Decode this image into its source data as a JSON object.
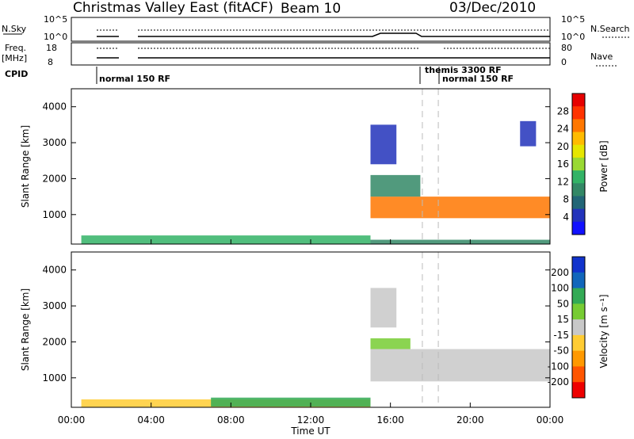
{
  "header": {
    "title": "Christmas Valley East (fitACF)",
    "beam": "Beam 10",
    "date": "03/Dec/2010"
  },
  "strip_labels": {
    "nsky": "N.Sky",
    "nsky_ticks": [
      "10^5",
      "10^0"
    ],
    "nsearch": "N.Search",
    "nsearch_ticks": [
      "10^5",
      "10^0"
    ],
    "freq_line1": "Freq.",
    "freq_line2": "[MHz]",
    "freq_ticks": [
      "18",
      "8"
    ],
    "nave": "Nave",
    "nave_ticks": [
      "80",
      "0"
    ],
    "cpid": "CPID",
    "cpid_modes": [
      "normal 150 RF",
      "themis 3300 RF",
      "normal 150 RF"
    ]
  },
  "x_axis": {
    "label": "Time UT",
    "ticks": [
      "00:00",
      "04:00",
      "08:00",
      "12:00",
      "16:00",
      "20:00",
      "00:00"
    ]
  },
  "power_colorbar": {
    "label": "Power [dB]",
    "ticks": [
      "28",
      "24",
      "20",
      "16",
      "12",
      "8",
      "4"
    ],
    "colors": [
      "#e60000",
      "#ff3300",
      "#ff7700",
      "#ffbb00",
      "#e6e600",
      "#99d933",
      "#33b366",
      "#338866",
      "#226677",
      "#2233bb",
      "#1111ff"
    ]
  },
  "velocity_colorbar": {
    "label": "Velocity [m s⁻¹]",
    "ticks": [
      "200",
      "100",
      "50",
      "15",
      "-15",
      "-50",
      "-100",
      "-200"
    ],
    "colors": [
      "#1133cc",
      "#1166bb",
      "#33aa55",
      "#77cc33",
      "#c8c8c8",
      "#ffcc33",
      "#ff9900",
      "#ff5500",
      "#ee0000"
    ]
  },
  "chart_data": [
    {
      "type": "heatmap",
      "panel": "power",
      "xlabel": "Time UT",
      "ylabel": "Slant Range [km]",
      "xlim": [
        0,
        24
      ],
      "ylim": [
        180,
        4500
      ],
      "yticks": [
        "4000",
        "3000",
        "2000",
        "1000"
      ],
      "colorbar": "Power [dB]",
      "features": [
        {
          "t0": 0.5,
          "t1": 15.0,
          "r0": 180,
          "r1": 420,
          "value": 12
        },
        {
          "t0": 15.0,
          "t1": 24.0,
          "r0": 180,
          "r1": 300,
          "value": 8
        },
        {
          "t0": 15.0,
          "t1": 24.0,
          "r0": 900,
          "r1": 1500,
          "value": 24
        },
        {
          "t0": 15.0,
          "t1": 17.5,
          "r0": 1500,
          "r1": 2100,
          "value": 8
        },
        {
          "t0": 15.0,
          "t1": 16.3,
          "r0": 2400,
          "r1": 3500,
          "value": 4
        },
        {
          "t0": 22.5,
          "t1": 23.3,
          "r0": 2900,
          "r1": 3600,
          "value": 4
        }
      ]
    },
    {
      "type": "heatmap",
      "panel": "velocity",
      "xlabel": "Time UT",
      "ylabel": "Slant Range [km]",
      "xlim": [
        0,
        24
      ],
      "ylim": [
        180,
        4500
      ],
      "yticks": [
        "4000",
        "3000",
        "2000",
        "1000"
      ],
      "colorbar": "Velocity [m s⁻¹]",
      "features": [
        {
          "t0": 0.5,
          "t1": 15.0,
          "r0": 180,
          "r1": 400,
          "value": -50
        },
        {
          "t0": 7.0,
          "t1": 15.0,
          "r0": 200,
          "r1": 450,
          "value": 50
        },
        {
          "t0": 15.0,
          "t1": 24.0,
          "r0": 900,
          "r1": 1800,
          "value": 0
        },
        {
          "t0": 15.0,
          "t1": 17.0,
          "r0": 1800,
          "r1": 2100,
          "value": 15
        },
        {
          "t0": 15.0,
          "t1": 16.3,
          "r0": 2400,
          "r1": 3500,
          "value": 0
        }
      ]
    }
  ]
}
